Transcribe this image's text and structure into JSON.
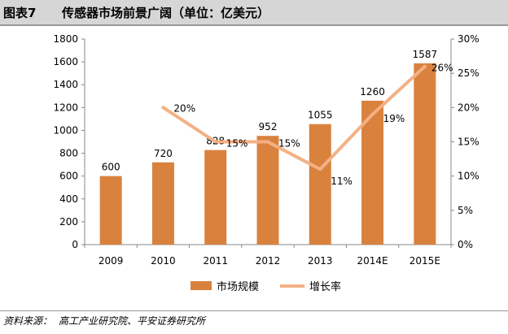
{
  "header": {
    "figure_label": "图表7",
    "title": "传感器市场前景广阔（单位：亿美元）"
  },
  "chart_data": {
    "type": "bar",
    "categories": [
      "2009",
      "2010",
      "2011",
      "2012",
      "2013",
      "2014E",
      "2015E"
    ],
    "series": [
      {
        "name": "市场规模",
        "type": "bar",
        "axis": "left",
        "values": [
          600,
          720,
          828,
          952,
          1055,
          1260,
          1587
        ],
        "labels": [
          "600",
          "720",
          "828",
          "952",
          "1055",
          "1260",
          "1587"
        ],
        "color": "#d9823e"
      },
      {
        "name": "增长率",
        "type": "line",
        "axis": "right",
        "values": [
          null,
          20,
          15,
          15,
          11,
          19,
          26
        ],
        "labels": [
          "",
          "20%",
          "15%",
          "15%",
          "11%",
          "19%",
          "26%"
        ],
        "color": "#f4b084"
      }
    ],
    "y_left": {
      "min": 0,
      "max": 1800,
      "ticks": [
        "0",
        "200",
        "400",
        "600",
        "800",
        "1000",
        "1200",
        "1400",
        "1600",
        "1800"
      ]
    },
    "y_right": {
      "min": 0,
      "max": 30,
      "ticks": [
        "0%",
        "5%",
        "10%",
        "15%",
        "20%",
        "25%",
        "30%"
      ]
    },
    "grid": false,
    "legend_position": "bottom-center"
  },
  "legend": {
    "bar_label": "市场规模",
    "line_label": "增长率"
  },
  "source": {
    "label": "资料来源：",
    "text": "高工产业研究院、平安证券研究所"
  }
}
